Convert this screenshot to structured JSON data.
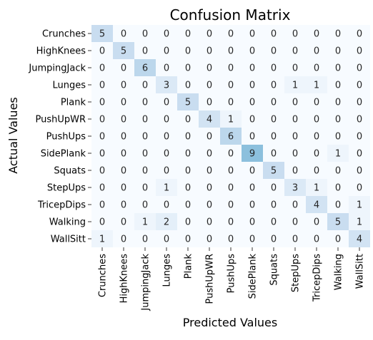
{
  "chart_data": {
    "type": "heatmap",
    "title": "Confusion Matrix",
    "xlabel": "Predicted Values",
    "ylabel": "Actual Values",
    "categories": [
      "Crunches",
      "HighKnees",
      "JumpingJack",
      "Lunges",
      "Plank",
      "PushUpWR",
      "PushUps",
      "SidePlank",
      "Squats",
      "StepUps",
      "TricepDips",
      "Walking",
      "WallSitt"
    ],
    "values": [
      [
        5,
        0,
        0,
        0,
        0,
        0,
        0,
        0,
        0,
        0,
        0,
        0,
        0
      ],
      [
        0,
        5,
        0,
        0,
        0,
        0,
        0,
        0,
        0,
        0,
        0,
        0,
        0
      ],
      [
        0,
        0,
        6,
        0,
        0,
        0,
        0,
        0,
        0,
        0,
        0,
        0,
        0
      ],
      [
        0,
        0,
        0,
        3,
        0,
        0,
        0,
        0,
        0,
        1,
        1,
        0,
        0
      ],
      [
        0,
        0,
        0,
        0,
        5,
        0,
        0,
        0,
        0,
        0,
        0,
        0,
        0
      ],
      [
        0,
        0,
        0,
        0,
        0,
        4,
        1,
        0,
        0,
        0,
        0,
        0,
        0
      ],
      [
        0,
        0,
        0,
        0,
        0,
        0,
        6,
        0,
        0,
        0,
        0,
        0,
        0
      ],
      [
        0,
        0,
        0,
        0,
        0,
        0,
        0,
        9,
        0,
        0,
        0,
        1,
        0
      ],
      [
        0,
        0,
        0,
        0,
        0,
        0,
        0,
        0,
        5,
        0,
        0,
        0,
        0
      ],
      [
        0,
        0,
        0,
        1,
        0,
        0,
        0,
        0,
        0,
        3,
        1,
        0,
        0
      ],
      [
        0,
        0,
        0,
        0,
        0,
        0,
        0,
        0,
        0,
        0,
        4,
        0,
        1
      ],
      [
        0,
        0,
        1,
        2,
        0,
        0,
        0,
        0,
        0,
        0,
        0,
        5,
        1
      ],
      [
        1,
        0,
        0,
        0,
        0,
        0,
        0,
        0,
        0,
        0,
        0,
        0,
        4
      ]
    ],
    "colormap": "Blues",
    "vmax": 9,
    "colorbar": false,
    "annotations": true
  }
}
